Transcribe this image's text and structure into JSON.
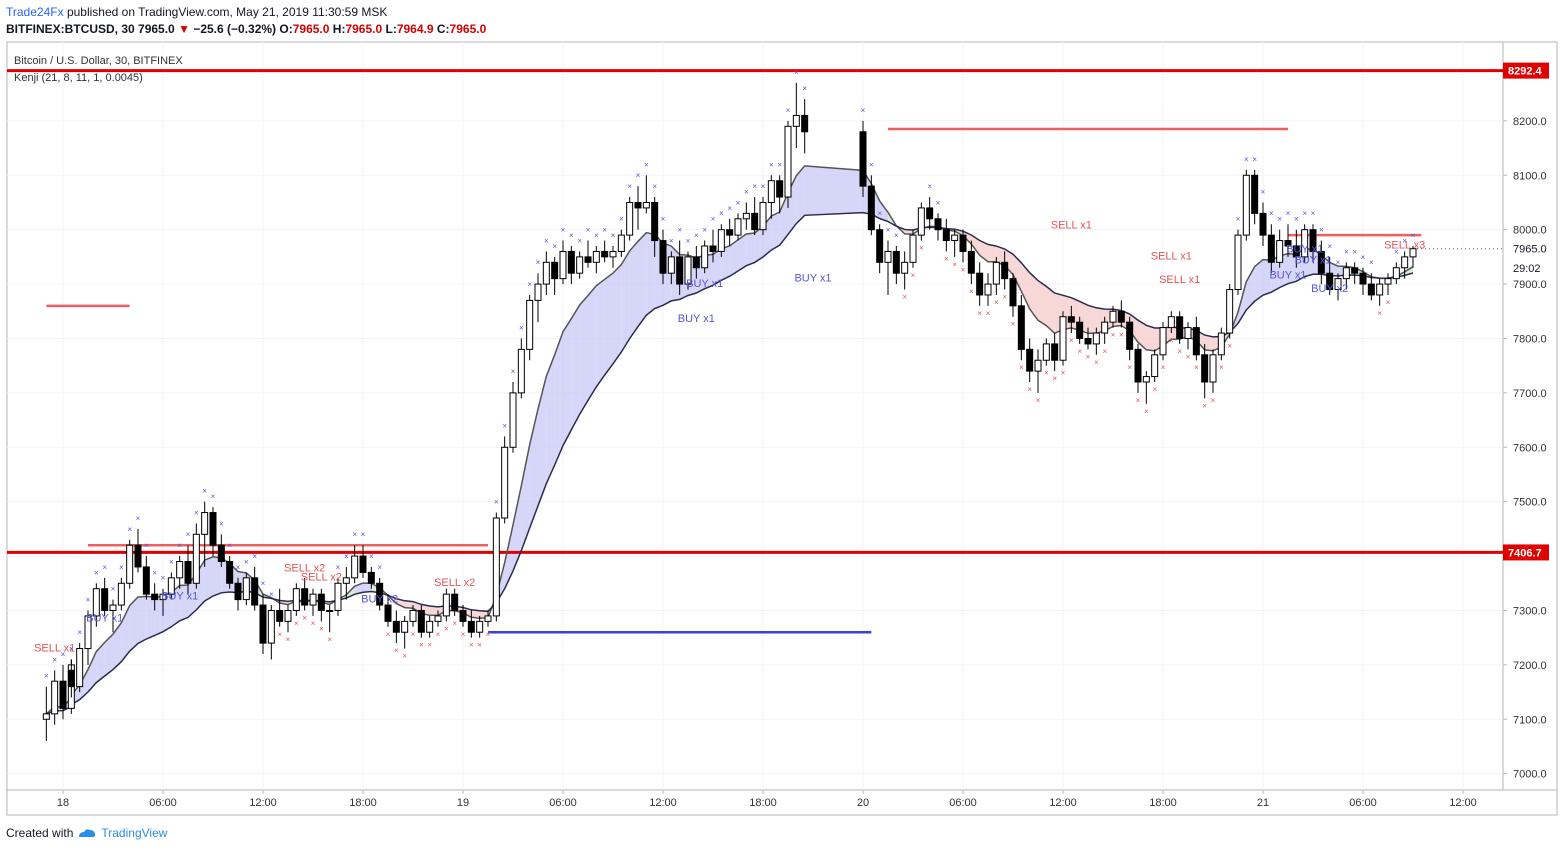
{
  "header": {
    "publisher": "Trade24Fx",
    "published_text": "published on TradingView.com, May 21, 2019 11:30:59 MSK",
    "symbol": "BITFINEX:BTCUSD, 30",
    "last_price": "7965.0",
    "change": "−25.6 (−0.32%)",
    "open_label": "O:",
    "open": "7965.0",
    "high_label": "H:",
    "high": "7965.0",
    "low_label": "L:",
    "low": "7964.9",
    "close_label": "C:",
    "close": "7965.0"
  },
  "legend": {
    "title": "Bitcoin / U.S. Dollar, 30, BITFINEX",
    "indicator": "Kenji (21, 8, 11, 1, 0.0045)"
  },
  "footer": {
    "created_with": "Created with",
    "brand": "TradingView"
  },
  "colors": {
    "up": "#ffffff",
    "down": "#000000",
    "candle_border": "#000000",
    "ema_fast": "#555555",
    "ema_slow": "#2b2b4f",
    "fill_bull": "#c8c8f5",
    "fill_bull_green": "#c7ebc7",
    "fill_bear": "#f6c9c9",
    "level_major": "#e00000",
    "level_minor": "#ef5f5f",
    "level_blue": "#3f3fd9",
    "buy": "#5555dd",
    "sell": "#e05656",
    "axis_text": "#333333"
  },
  "chart_data": {
    "type": "candlestick",
    "timeframe_minutes": 30,
    "y_axis": {
      "ylim": [
        6970,
        8345
      ],
      "ticks": [
        7000,
        7100,
        7200,
        7300,
        7400,
        7500,
        7600,
        7700,
        7800,
        7900,
        8000,
        8100,
        8200
      ]
    },
    "x_axis": {
      "ticks": [
        "18",
        "06:00",
        "12:00",
        "18:00",
        "19",
        "06:00",
        "12:00",
        "18:00",
        "20",
        "06:00",
        "12:00",
        "18:00",
        "21",
        "06:00",
        "12:00"
      ]
    },
    "price_labels": [
      {
        "value": 8292.4,
        "text": "8292.4",
        "style": "major"
      },
      {
        "value": 7406.7,
        "text": "7406.7",
        "style": "major"
      },
      {
        "value": 7965.0,
        "text": "7965.0",
        "style": "last"
      },
      {
        "value": 7930,
        "text": "29:02",
        "style": "timer"
      }
    ],
    "horizontal_levels": [
      {
        "price": 8292.4,
        "from": "start",
        "to": "end",
        "style": "major"
      },
      {
        "price": 7406.7,
        "from": "start",
        "to": "end",
        "style": "major"
      },
      {
        "price": 7860,
        "from": "17 23:00",
        "to": "18 04:00",
        "style": "minor"
      },
      {
        "price": 7420,
        "from": "18 01:30",
        "to": "19 01:30",
        "style": "minor"
      },
      {
        "price": 7260,
        "from": "19 01:30",
        "to": "20 00:30",
        "style": "blue"
      },
      {
        "price": 8185,
        "from": "20 01:30",
        "to": "21 01:30",
        "style": "minor"
      },
      {
        "price": 7990,
        "from": "21 01:30",
        "to": "21 09:30",
        "style": "minor"
      }
    ],
    "signal_labels": [
      {
        "text": "SELL x1",
        "time": "17 23:30",
        "price": 7225,
        "side": "sell"
      },
      {
        "text": "BUY x1",
        "time": "18 02:30",
        "price": 7280,
        "side": "buy"
      },
      {
        "text": "BUY x1",
        "time": "18 07:00",
        "price": 7320,
        "side": "buy"
      },
      {
        "text": "SELL x2",
        "time": "18 14:30",
        "price": 7372,
        "side": "sell"
      },
      {
        "text": "SELL x2",
        "time": "18 15:30",
        "price": 7355,
        "side": "sell"
      },
      {
        "text": "BUY x2",
        "time": "18 19:00",
        "price": 7315,
        "side": "buy"
      },
      {
        "text": "SELL x2",
        "time": "18 23:30",
        "price": 7345,
        "side": "sell"
      },
      {
        "text": "BUY x1",
        "time": "19 14:00",
        "price": 7830,
        "side": "buy"
      },
      {
        "text": "BUY x1",
        "time": "19 14:30",
        "price": 7895,
        "side": "buy"
      },
      {
        "text": "BUY x1",
        "time": "19 21:00",
        "price": 7905,
        "side": "buy"
      },
      {
        "text": "SELL x1",
        "time": "20 12:30",
        "price": 8002,
        "side": "sell"
      },
      {
        "text": "SELL x1",
        "time": "20 18:30",
        "price": 7945,
        "side": "sell"
      },
      {
        "text": "SELL x1",
        "time": "20 19:00",
        "price": 7902,
        "side": "sell"
      },
      {
        "text": "BUY x1",
        "time": "21 02:30",
        "price": 7958,
        "side": "buy"
      },
      {
        "text": "BUY x1",
        "time": "21 03:00",
        "price": 7938,
        "side": "buy"
      },
      {
        "text": "BUY x1",
        "time": "21 01:30",
        "price": 7910,
        "side": "buy"
      },
      {
        "text": "BUY x2",
        "time": "21 04:00",
        "price": 7885,
        "side": "buy"
      },
      {
        "text": "SELL x3",
        "time": "21 08:30",
        "price": 7965,
        "side": "sell"
      }
    ],
    "candles": [
      [
        "17 23:00",
        7100,
        7160,
        7060,
        7110
      ],
      [
        "17 23:30",
        7110,
        7190,
        7090,
        7170
      ],
      [
        "17 24:00",
        7170,
        7200,
        7100,
        7120
      ],
      [
        "17 24:30",
        7120,
        7210,
        7110,
        7200
      ],
      [
        "18 00:30",
        7190,
        7210,
        7140,
        7160
      ],
      [
        "18 01:00",
        7160,
        7240,
        7150,
        7230
      ],
      [
        "18 01:30",
        7230,
        7300,
        7200,
        7290
      ],
      [
        "18 02:00",
        7290,
        7350,
        7270,
        7340
      ],
      [
        "18 02:30",
        7340,
        7360,
        7290,
        7300
      ],
      [
        "18 03:00",
        7300,
        7320,
        7260,
        7310
      ],
      [
        "18 03:30",
        7310,
        7360,
        7300,
        7350
      ],
      [
        "18 04:00",
        7350,
        7430,
        7340,
        7420
      ],
      [
        "18 04:30",
        7420,
        7450,
        7370,
        7380
      ],
      [
        "18 05:00",
        7380,
        7400,
        7320,
        7330
      ],
      [
        "18 05:30",
        7330,
        7350,
        7300,
        7320
      ],
      [
        "18 06:00",
        7320,
        7340,
        7290,
        7330
      ],
      [
        "18 06:30",
        7330,
        7370,
        7320,
        7360
      ],
      [
        "18 07:00",
        7360,
        7400,
        7340,
        7390
      ],
      [
        "18 07:30",
        7390,
        7420,
        7330,
        7350
      ],
      [
        "18 08:00",
        7350,
        7460,
        7340,
        7440
      ],
      [
        "18 08:30",
        7440,
        7500,
        7380,
        7480
      ],
      [
        "18 09:00",
        7480,
        7490,
        7400,
        7420
      ],
      [
        "18 09:30",
        7420,
        7440,
        7380,
        7390
      ],
      [
        "18 10:00",
        7390,
        7400,
        7340,
        7350
      ],
      [
        "18 10:30",
        7350,
        7360,
        7300,
        7320
      ],
      [
        "18 11:00",
        7320,
        7370,
        7310,
        7360
      ],
      [
        "18 11:30",
        7360,
        7380,
        7300,
        7310
      ],
      [
        "18 12:00",
        7310,
        7330,
        7220,
        7240
      ],
      [
        "18 12:30",
        7240,
        7310,
        7210,
        7300
      ],
      [
        "18 13:00",
        7300,
        7340,
        7270,
        7280
      ],
      [
        "18 13:30",
        7280,
        7310,
        7260,
        7300
      ],
      [
        "18 14:00",
        7300,
        7350,
        7290,
        7340
      ],
      [
        "18 14:30",
        7340,
        7360,
        7300,
        7310
      ],
      [
        "18 15:00",
        7310,
        7340,
        7290,
        7330
      ],
      [
        "18 15:30",
        7330,
        7340,
        7280,
        7300
      ],
      [
        "18 16:00",
        7300,
        7310,
        7260,
        7300
      ],
      [
        "18 16:30",
        7300,
        7360,
        7290,
        7350
      ],
      [
        "18 17:00",
        7350,
        7380,
        7320,
        7360
      ],
      [
        "18 17:30",
        7360,
        7420,
        7350,
        7400
      ],
      [
        "18 18:00",
        7400,
        7420,
        7360,
        7370
      ],
      [
        "18 18:30",
        7370,
        7380,
        7340,
        7350
      ],
      [
        "18 19:00",
        7350,
        7360,
        7300,
        7310
      ],
      [
        "18 19:30",
        7310,
        7330,
        7270,
        7280
      ],
      [
        "18 20:00",
        7280,
        7300,
        7240,
        7260
      ],
      [
        "18 20:30",
        7260,
        7290,
        7230,
        7280
      ],
      [
        "18 21:00",
        7280,
        7310,
        7270,
        7300
      ],
      [
        "18 21:30",
        7300,
        7310,
        7250,
        7260
      ],
      [
        "18 22:00",
        7260,
        7290,
        7250,
        7280
      ],
      [
        "18 22:30",
        7280,
        7300,
        7270,
        7290
      ],
      [
        "18 23:00",
        7290,
        7340,
        7280,
        7330
      ],
      [
        "18 23:30",
        7330,
        7340,
        7290,
        7300
      ],
      [
        "18 24:00",
        7300,
        7310,
        7270,
        7280
      ],
      [
        "19 00:30",
        7280,
        7300,
        7250,
        7260
      ],
      [
        "19 01:00",
        7260,
        7290,
        7250,
        7280
      ],
      [
        "19 01:30",
        7280,
        7300,
        7270,
        7290
      ],
      [
        "19 02:00",
        7290,
        7480,
        7280,
        7470
      ],
      [
        "19 02:30",
        7470,
        7620,
        7460,
        7600
      ],
      [
        "19 03:00",
        7600,
        7720,
        7590,
        7700
      ],
      [
        "19 03:30",
        7700,
        7800,
        7690,
        7780
      ],
      [
        "19 04:00",
        7780,
        7880,
        7760,
        7870
      ],
      [
        "19 04:30",
        7870,
        7920,
        7830,
        7900
      ],
      [
        "19 05:00",
        7900,
        7960,
        7880,
        7940
      ],
      [
        "19 05:30",
        7940,
        7950,
        7880,
        7910
      ],
      [
        "19 06:00",
        7910,
        7980,
        7900,
        7960
      ],
      [
        "19 06:30",
        7960,
        7970,
        7900,
        7920
      ],
      [
        "19 07:00",
        7920,
        7960,
        7910,
        7950
      ],
      [
        "19 07:30",
        7950,
        7980,
        7930,
        7940
      ],
      [
        "19 08:00",
        7940,
        7970,
        7920,
        7960
      ],
      [
        "19 08:30",
        7960,
        7980,
        7940,
        7950
      ],
      [
        "19 09:00",
        7950,
        7970,
        7930,
        7960
      ],
      [
        "19 09:30",
        7960,
        8000,
        7950,
        7990
      ],
      [
        "19 10:00",
        7990,
        8060,
        7980,
        8050
      ],
      [
        "19 10:30",
        8050,
        8080,
        8000,
        8040
      ],
      [
        "19 11:00",
        8040,
        8100,
        8030,
        8050
      ],
      [
        "19 11:30",
        8050,
        8060,
        7950,
        7980
      ],
      [
        "19 12:00",
        7980,
        8000,
        7900,
        7920
      ],
      [
        "19 12:30",
        7920,
        7960,
        7900,
        7950
      ],
      [
        "19 13:00",
        7950,
        7980,
        7880,
        7900
      ],
      [
        "19 13:30",
        7900,
        7960,
        7890,
        7950
      ],
      [
        "19 14:00",
        7950,
        7970,
        7910,
        7930
      ],
      [
        "19 14:30",
        7930,
        7980,
        7920,
        7970
      ],
      [
        "19 15:00",
        7970,
        8000,
        7940,
        7960
      ],
      [
        "19 15:30",
        7960,
        8010,
        7950,
        8000
      ],
      [
        "19 16:00",
        8000,
        8020,
        7970,
        7990
      ],
      [
        "19 16:30",
        7990,
        8030,
        7980,
        8020
      ],
      [
        "19 17:00",
        8020,
        8050,
        8000,
        8030
      ],
      [
        "19 17:30",
        8030,
        8060,
        7990,
        8000
      ],
      [
        "19 18:00",
        8000,
        8060,
        7990,
        8050
      ],
      [
        "19 18:30",
        8050,
        8100,
        8020,
        8090
      ],
      [
        "19 19:00",
        8090,
        8100,
        8030,
        8060
      ],
      [
        "19 19:30",
        8060,
        8200,
        8040,
        8190
      ],
      [
        "19 20:00",
        8190,
        8270,
        8150,
        8210
      ],
      [
        "19 20:30",
        8210,
        8240,
        8140,
        8180
      ],
      [
        "20 00:00",
        8180,
        8200,
        8060,
        8080
      ],
      [
        "20 00:30",
        8080,
        8100,
        7990,
        8000
      ],
      [
        "20 01:00",
        8000,
        8010,
        7920,
        7940
      ],
      [
        "20 01:30",
        7940,
        7980,
        7880,
        7960
      ],
      [
        "20 02:00",
        7960,
        7970,
        7900,
        7920
      ],
      [
        "20 02:30",
        7920,
        7960,
        7890,
        7940
      ],
      [
        "20 03:00",
        7940,
        8000,
        7930,
        7990
      ],
      [
        "20 03:30",
        7990,
        8050,
        7980,
        8040
      ],
      [
        "20 04:00",
        8040,
        8060,
        8000,
        8020
      ],
      [
        "20 04:30",
        8020,
        8030,
        7980,
        8000
      ],
      [
        "20 05:00",
        8000,
        8020,
        7960,
        7980
      ],
      [
        "20 05:30",
        7980,
        8000,
        7950,
        7990
      ],
      [
        "20 06:00",
        7990,
        8000,
        7940,
        7960
      ],
      [
        "20 06:30",
        7960,
        7980,
        7900,
        7920
      ],
      [
        "20 07:00",
        7920,
        7940,
        7860,
        7880
      ],
      [
        "20 07:30",
        7880,
        7920,
        7860,
        7900
      ],
      [
        "20 08:00",
        7900,
        7950,
        7880,
        7940
      ],
      [
        "20 08:30",
        7940,
        7960,
        7890,
        7910
      ],
      [
        "20 09:00",
        7910,
        7920,
        7840,
        7860
      ],
      [
        "20 09:30",
        7860,
        7880,
        7760,
        7780
      ],
      [
        "20 10:00",
        7780,
        7800,
        7720,
        7740
      ],
      [
        "20 10:30",
        7740,
        7780,
        7700,
        7760
      ],
      [
        "20 11:00",
        7760,
        7800,
        7750,
        7790
      ],
      [
        "20 11:30",
        7790,
        7810,
        7740,
        7760
      ],
      [
        "20 12:00",
        7760,
        7850,
        7750,
        7840
      ],
      [
        "20 12:30",
        7840,
        7860,
        7810,
        7830
      ],
      [
        "20 13:00",
        7830,
        7840,
        7790,
        7800
      ],
      [
        "20 13:30",
        7800,
        7820,
        7780,
        7790
      ],
      [
        "20 14:00",
        7790,
        7820,
        7770,
        7810
      ],
      [
        "20 14:30",
        7810,
        7840,
        7790,
        7830
      ],
      [
        "20 15:00",
        7830,
        7860,
        7820,
        7850
      ],
      [
        "20 15:30",
        7850,
        7870,
        7820,
        7830
      ],
      [
        "20 16:00",
        7830,
        7840,
        7760,
        7780
      ],
      [
        "20 16:30",
        7780,
        7790,
        7700,
        7720
      ],
      [
        "20 17:00",
        7720,
        7740,
        7680,
        7730
      ],
      [
        "20 17:30",
        7730,
        7780,
        7720,
        7770
      ],
      [
        "20 18:00",
        7770,
        7830,
        7760,
        7820
      ],
      [
        "20 18:30",
        7820,
        7850,
        7810,
        7840
      ],
      [
        "20 19:00",
        7840,
        7850,
        7790,
        7800
      ],
      [
        "20 19:30",
        7800,
        7830,
        7780,
        7820
      ],
      [
        "20 20:00",
        7820,
        7840,
        7760,
        7770
      ],
      [
        "20 20:30",
        7770,
        7790,
        7690,
        7720
      ],
      [
        "20 21:00",
        7720,
        7780,
        7700,
        7770
      ],
      [
        "20 21:30",
        7770,
        7820,
        7760,
        7810
      ],
      [
        "20 22:00",
        7810,
        7900,
        7800,
        7890
      ],
      [
        "20 22:30",
        7890,
        8000,
        7880,
        7990
      ],
      [
        "20 23:00",
        7990,
        8110,
        7980,
        8100
      ],
      [
        "20 23:30",
        8100,
        8110,
        8010,
        8030
      ],
      [
        "21 00:00",
        8030,
        8050,
        7970,
        7990
      ],
      [
        "21 00:30",
        7990,
        8010,
        7920,
        7940
      ],
      [
        "21 01:00",
        7940,
        8000,
        7930,
        7980
      ],
      [
        "21 01:30",
        7980,
        8010,
        7950,
        7970
      ],
      [
        "21 02:00",
        7970,
        8000,
        7930,
        7950
      ],
      [
        "21 02:30",
        7950,
        8010,
        7940,
        8000
      ],
      [
        "21 03:00",
        8000,
        8010,
        7940,
        7960
      ],
      [
        "21 03:30",
        7960,
        7980,
        7900,
        7920
      ],
      [
        "21 04:00",
        7920,
        7950,
        7880,
        7890
      ],
      [
        "21 04:30",
        7890,
        7920,
        7870,
        7910
      ],
      [
        "21 05:00",
        7910,
        7940,
        7890,
        7930
      ],
      [
        "21 05:30",
        7930,
        7940,
        7900,
        7920
      ],
      [
        "21 06:00",
        7920,
        7930,
        7880,
        7900
      ],
      [
        "21 06:30",
        7900,
        7920,
        7870,
        7880
      ],
      [
        "21 07:00",
        7880,
        7910,
        7860,
        7900
      ],
      [
        "21 07:30",
        7900,
        7920,
        7880,
        7910
      ],
      [
        "21 08:00",
        7910,
        7940,
        7900,
        7930
      ],
      [
        "21 08:30",
        7930,
        7960,
        7910,
        7950
      ],
      [
        "21 09:00",
        7950,
        7970,
        7930,
        7965
      ]
    ]
  }
}
